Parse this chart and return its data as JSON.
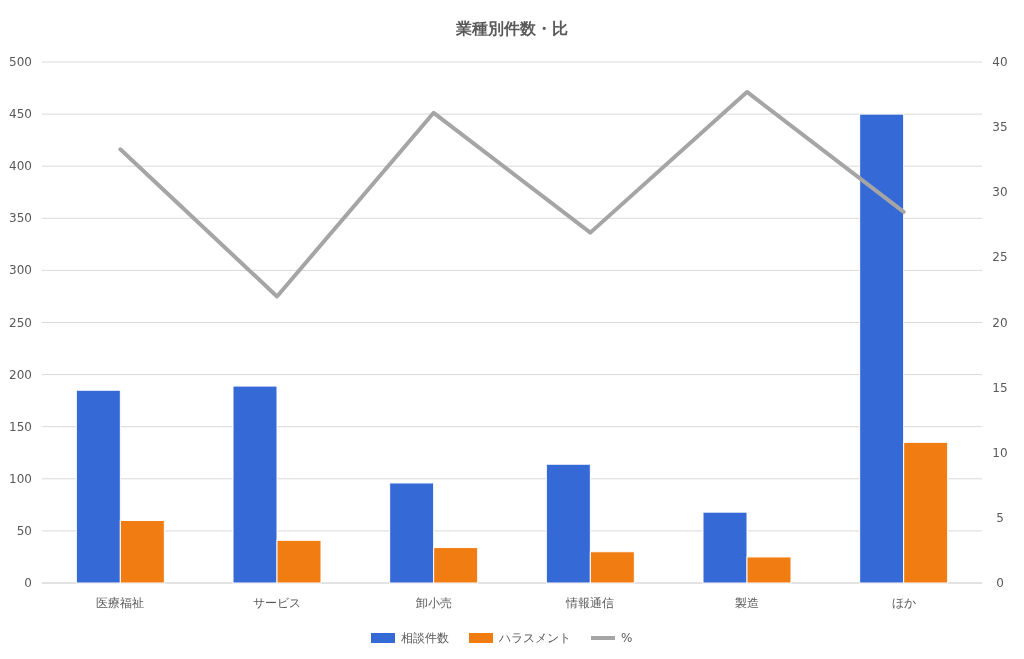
{
  "chart_data": {
    "type": "bar",
    "title": "業種別件数・比",
    "categories": [
      "医療福祉",
      "サービス",
      "卸小売",
      "情報通信",
      "製造",
      "ほか"
    ],
    "series": [
      {
        "name": "相談件数",
        "color": "#3569d6",
        "values": [
          185,
          189,
          96,
          114,
          68,
          450
        ]
      },
      {
        "name": "ハラスメント",
        "color": "#f07c12",
        "values": [
          60,
          41,
          34,
          30,
          25,
          135
        ]
      },
      {
        "name": "%",
        "color": "#a5a5a5",
        "type": "line",
        "axis": "y2",
        "values": [
          33.3,
          22.0,
          36.1,
          26.9,
          37.7,
          28.5
        ]
      }
    ],
    "ylim": [
      0,
      500
    ],
    "yticks": [
      0,
      50,
      100,
      150,
      200,
      250,
      300,
      350,
      400,
      450,
      500
    ],
    "y2lim": [
      0,
      40
    ],
    "y2ticks": [
      0,
      5,
      10,
      15,
      20,
      25,
      30,
      35,
      40
    ],
    "grid": "y",
    "legend": "bottom"
  }
}
